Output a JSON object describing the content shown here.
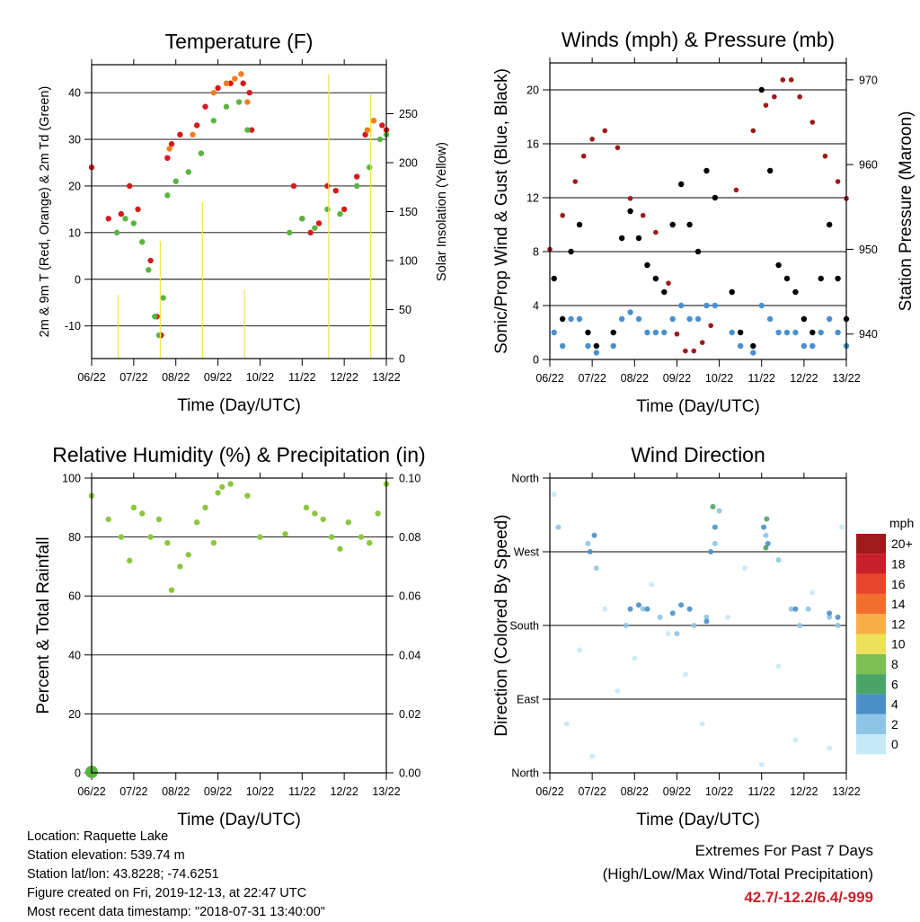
{
  "chart_data": [
    {
      "type": "scatter",
      "title": "Temperature (F)",
      "xlabel": "Time (Day/UTC)",
      "ylabel": "2m & 9m T (Red, Orange) & 2m Td (Green)",
      "y2label": "Solar Insolation (Yellow)",
      "x_ticks": [
        "06/22",
        "07/22",
        "08/22",
        "09/22",
        "10/22",
        "11/22",
        "12/22",
        "13/22"
      ],
      "xlim": [
        0,
        7
      ],
      "ylim": [
        -17,
        46
      ],
      "y_ticks": [
        -10,
        0,
        10,
        20,
        30,
        40
      ],
      "y2lim": [
        0,
        300
      ],
      "y2_ticks": [
        0,
        50,
        100,
        150,
        200,
        250
      ],
      "grid": true,
      "series": [
        {
          "color": "#d7191c",
          "x": [
            0.0,
            0.4,
            0.7,
            0.9,
            1.1,
            1.4,
            1.55,
            1.65,
            1.8,
            1.9,
            2.1,
            2.5,
            2.7,
            3.0,
            3.3,
            3.6,
            3.75,
            3.8,
            4.8,
            5.0,
            5.2,
            5.4,
            5.6,
            5.8,
            6.0,
            6.3,
            6.5,
            6.7,
            6.9,
            7.0
          ],
          "y": [
            24,
            13,
            14,
            20,
            15,
            4,
            -8,
            -12,
            26,
            29,
            31,
            33,
            37,
            41,
            42,
            42,
            40,
            32,
            20,
            13,
            10,
            12,
            20,
            19,
            15,
            22,
            31,
            34,
            33,
            32
          ]
        },
        {
          "color": "#f47c20",
          "x": [
            1.85,
            2.4,
            2.9,
            3.2,
            3.4,
            3.55,
            3.7,
            6.55,
            6.7
          ],
          "y": [
            28,
            31,
            40,
            42,
            43,
            44,
            38,
            32,
            34
          ]
        },
        {
          "color": "#5ab440",
          "x": [
            0.6,
            0.8,
            1.0,
            1.2,
            1.35,
            1.5,
            1.6,
            1.7,
            1.8,
            2.0,
            2.3,
            2.6,
            2.9,
            3.2,
            3.5,
            3.7,
            4.7,
            5.0,
            5.3,
            5.6,
            5.9,
            6.3,
            6.6,
            6.85,
            7.0
          ],
          "y": [
            10,
            13,
            12,
            8,
            2,
            -8,
            -12,
            -4,
            18,
            21,
            23,
            27,
            34,
            37,
            38,
            32,
            10,
            13,
            11,
            15,
            14,
            20,
            24,
            30,
            31
          ]
        },
        {
          "color": "#f5e14a",
          "axis": "y2",
          "x": [
            0.63,
            1.63,
            2.63,
            3.63,
            4.63,
            5.63,
            6.63
          ],
          "y": [
            65,
            120,
            160,
            70,
            0,
            290,
            270
          ]
        }
      ]
    },
    {
      "type": "scatter",
      "title": "Winds (mph) & Pressure (mb)",
      "xlabel": "Time (Day/UTC)",
      "ylabel": "Sonic/Prop Wind & Gust (Blue, Black)",
      "y2label": "Station Pressure (Maroon)",
      "x_ticks": [
        "06/22",
        "07/22",
        "08/22",
        "09/22",
        "10/22",
        "11/22",
        "12/22",
        "13/22"
      ],
      "xlim": [
        0,
        7
      ],
      "ylim": [
        0,
        22
      ],
      "y_ticks": [
        0,
        4,
        8,
        12,
        16,
        20
      ],
      "y2lim": [
        937,
        972
      ],
      "y2_ticks": [
        940,
        950,
        960,
        970
      ],
      "grid": true,
      "series": [
        {
          "color": "#000000",
          "x": [
            0.1,
            0.3,
            0.5,
            0.7,
            0.9,
            1.1,
            1.5,
            1.7,
            1.9,
            2.1,
            2.3,
            2.5,
            2.7,
            2.9,
            3.1,
            3.3,
            3.5,
            3.7,
            3.9,
            4.3,
            4.5,
            4.8,
            5.0,
            5.2,
            5.4,
            5.6,
            5.8,
            6.0,
            6.2,
            6.4,
            6.6,
            6.8,
            7.0
          ],
          "y": [
            6,
            3,
            8,
            10,
            2,
            1,
            2,
            9,
            11,
            9,
            7,
            6,
            5,
            10,
            13,
            10,
            8,
            14,
            12,
            5,
            2,
            1,
            20,
            14,
            7,
            6,
            5,
            3,
            2,
            6,
            10,
            6,
            3
          ]
        },
        {
          "color": "#4a90d0",
          "x": [
            0.1,
            0.3,
            0.5,
            0.7,
            0.9,
            1.1,
            1.5,
            1.7,
            1.9,
            2.1,
            2.3,
            2.5,
            2.7,
            2.9,
            3.1,
            3.3,
            3.5,
            3.7,
            3.9,
            4.3,
            4.5,
            4.8,
            5.0,
            5.2,
            5.4,
            5.6,
            5.8,
            6.0,
            6.2,
            6.4,
            6.6,
            6.8,
            7.0
          ],
          "y": [
            2,
            1,
            3,
            3,
            1,
            0.5,
            1,
            3,
            3.5,
            3,
            2,
            2,
            2,
            3,
            4,
            3,
            3,
            4,
            4,
            2,
            1,
            0.5,
            4,
            3,
            2,
            2,
            2,
            1,
            1,
            2,
            3,
            2,
            1
          ]
        },
        {
          "color": "#9e1b1b",
          "axis": "y2",
          "x": [
            0.0,
            0.3,
            0.6,
            0.8,
            1.0,
            1.3,
            1.6,
            1.9,
            2.2,
            2.5,
            2.8,
            3.0,
            3.2,
            3.4,
            3.6,
            3.8,
            4.4,
            4.8,
            5.1,
            5.3,
            5.5,
            5.7,
            5.9,
            6.2,
            6.5,
            6.8,
            7.0
          ],
          "y": [
            950,
            954,
            958,
            961,
            963,
            964,
            962,
            956,
            954,
            952,
            946,
            940,
            938,
            938,
            939,
            941,
            957,
            964,
            967,
            968,
            970,
            970,
            968,
            965,
            961,
            958,
            956
          ]
        }
      ]
    },
    {
      "type": "scatter",
      "title": "Relative Humidity (%) & Precipitation (in)",
      "xlabel": "Time (Day/UTC)",
      "ylabel": "Percent & Total Rainfall",
      "x_ticks": [
        "06/22",
        "07/22",
        "08/22",
        "09/22",
        "10/22",
        "11/22",
        "12/22",
        "13/22"
      ],
      "xlim": [
        0,
        7
      ],
      "ylim": [
        0,
        100
      ],
      "y_ticks": [
        0,
        20,
        40,
        60,
        80,
        100
      ],
      "y2lim": [
        0,
        0.1
      ],
      "y2_ticks": [
        "0.00",
        "0.02",
        "0.04",
        "0.06",
        "0.08",
        "0.10"
      ],
      "grid": true,
      "series": [
        {
          "color": "#8cc63f",
          "x": [
            0.0,
            0.4,
            0.7,
            0.9,
            1.0,
            1.2,
            1.4,
            1.6,
            1.8,
            1.9,
            2.1,
            2.3,
            2.5,
            2.7,
            2.9,
            3.0,
            3.1,
            3.3,
            3.7,
            4.0,
            4.6,
            5.1,
            5.3,
            5.5,
            5.7,
            5.9,
            6.1,
            6.4,
            6.6,
            6.8,
            7.0
          ],
          "y": [
            94,
            86,
            80,
            72,
            90,
            88,
            80,
            86,
            78,
            62,
            70,
            74,
            85,
            90,
            78,
            95,
            97,
            98,
            94,
            80,
            81,
            90,
            88,
            86,
            80,
            76,
            85,
            80,
            78,
            88,
            98
          ]
        },
        {
          "color": "#5ab440",
          "axis": "y2",
          "x": [
            0.0,
            0.02,
            0.04
          ],
          "y": [
            0.0,
            0.0,
            0.0
          ]
        }
      ]
    },
    {
      "type": "scatter",
      "title": "Wind Direction",
      "xlabel": "Time (Day/UTC)",
      "ylabel": "Direction (Colored By Speed)",
      "x_ticks": [
        "06/22",
        "07/22",
        "08/22",
        "09/22",
        "10/22",
        "11/22",
        "12/22",
        "13/22"
      ],
      "xlim": [
        0,
        7
      ],
      "ylim": [
        0,
        360
      ],
      "y_tick_labels": [
        "North",
        "East",
        "South",
        "West",
        "North"
      ],
      "y_tick_values": [
        0,
        90,
        180,
        270,
        360
      ],
      "grid": true,
      "legend_position": "right",
      "colorbar": {
        "title": "mph",
        "labels": [
          "0",
          "2",
          "4",
          "6",
          "8",
          "10",
          "12",
          "14",
          "16",
          "18",
          "20+"
        ],
        "colors": [
          "#c6e9f7",
          "#8ec4e6",
          "#4a8fc8",
          "#4aa468",
          "#7cbf52",
          "#eee15a",
          "#f7ae48",
          "#f26e2c",
          "#e6462a",
          "#c8202a",
          "#9e1b1b"
        ]
      },
      "series": [
        {
          "color": "#c6e9f7",
          "x": [
            0.1,
            0.4,
            0.7,
            1.0,
            1.3,
            1.6,
            2.0,
            2.4,
            2.8,
            3.2,
            3.6,
            4.2,
            4.6,
            5.0,
            5.4,
            5.8,
            6.2,
            6.6,
            6.9
          ],
          "y": [
            340,
            60,
            150,
            20,
            200,
            100,
            140,
            230,
            170,
            120,
            60,
            190,
            250,
            10,
            130,
            40,
            220,
            30,
            300
          ]
        },
        {
          "color": "#8ec4e6",
          "x": [
            0.2,
            0.9,
            1.1,
            1.8,
            2.2,
            2.6,
            3.0,
            3.4,
            3.7,
            3.9,
            4.0,
            5.1,
            5.4,
            5.7,
            5.9,
            6.1,
            6.6,
            6.8
          ],
          "y": [
            300,
            280,
            250,
            180,
            200,
            190,
            170,
            180,
            190,
            280,
            320,
            290,
            260,
            200,
            180,
            200,
            190,
            180
          ]
        },
        {
          "color": "#4a8fc8",
          "x": [
            0.95,
            1.05,
            1.9,
            2.1,
            2.3,
            2.9,
            3.1,
            3.3,
            3.7,
            3.8,
            3.9,
            5.05,
            5.15,
            5.8,
            6.6,
            6.8
          ],
          "y": [
            270,
            290,
            200,
            205,
            200,
            195,
            205,
            200,
            185,
            270,
            300,
            300,
            280,
            200,
            195,
            190
          ]
        },
        {
          "color": "#4aa468",
          "x": [
            3.85,
            5.1,
            5.12
          ],
          "y": [
            325,
            275,
            310
          ]
        }
      ]
    }
  ],
  "info": {
    "location": "Location: Raquette Lake",
    "elevation": "Station elevation: 539.74 m",
    "latlon": "Station lat/lon: 43.8228; -74.6251",
    "created": "Figure created on Fri, 2019-12-13, at 22:47 UTC",
    "recent": "Most recent data timestamp: \"2018-07-31 13:40:00\""
  },
  "extremes": {
    "title": "Extremes For Past 7 Days",
    "subtitle": "(High/Low/Max Wind/Total Precipitation)",
    "values": "42.7/-12.2/6.4/-999"
  }
}
